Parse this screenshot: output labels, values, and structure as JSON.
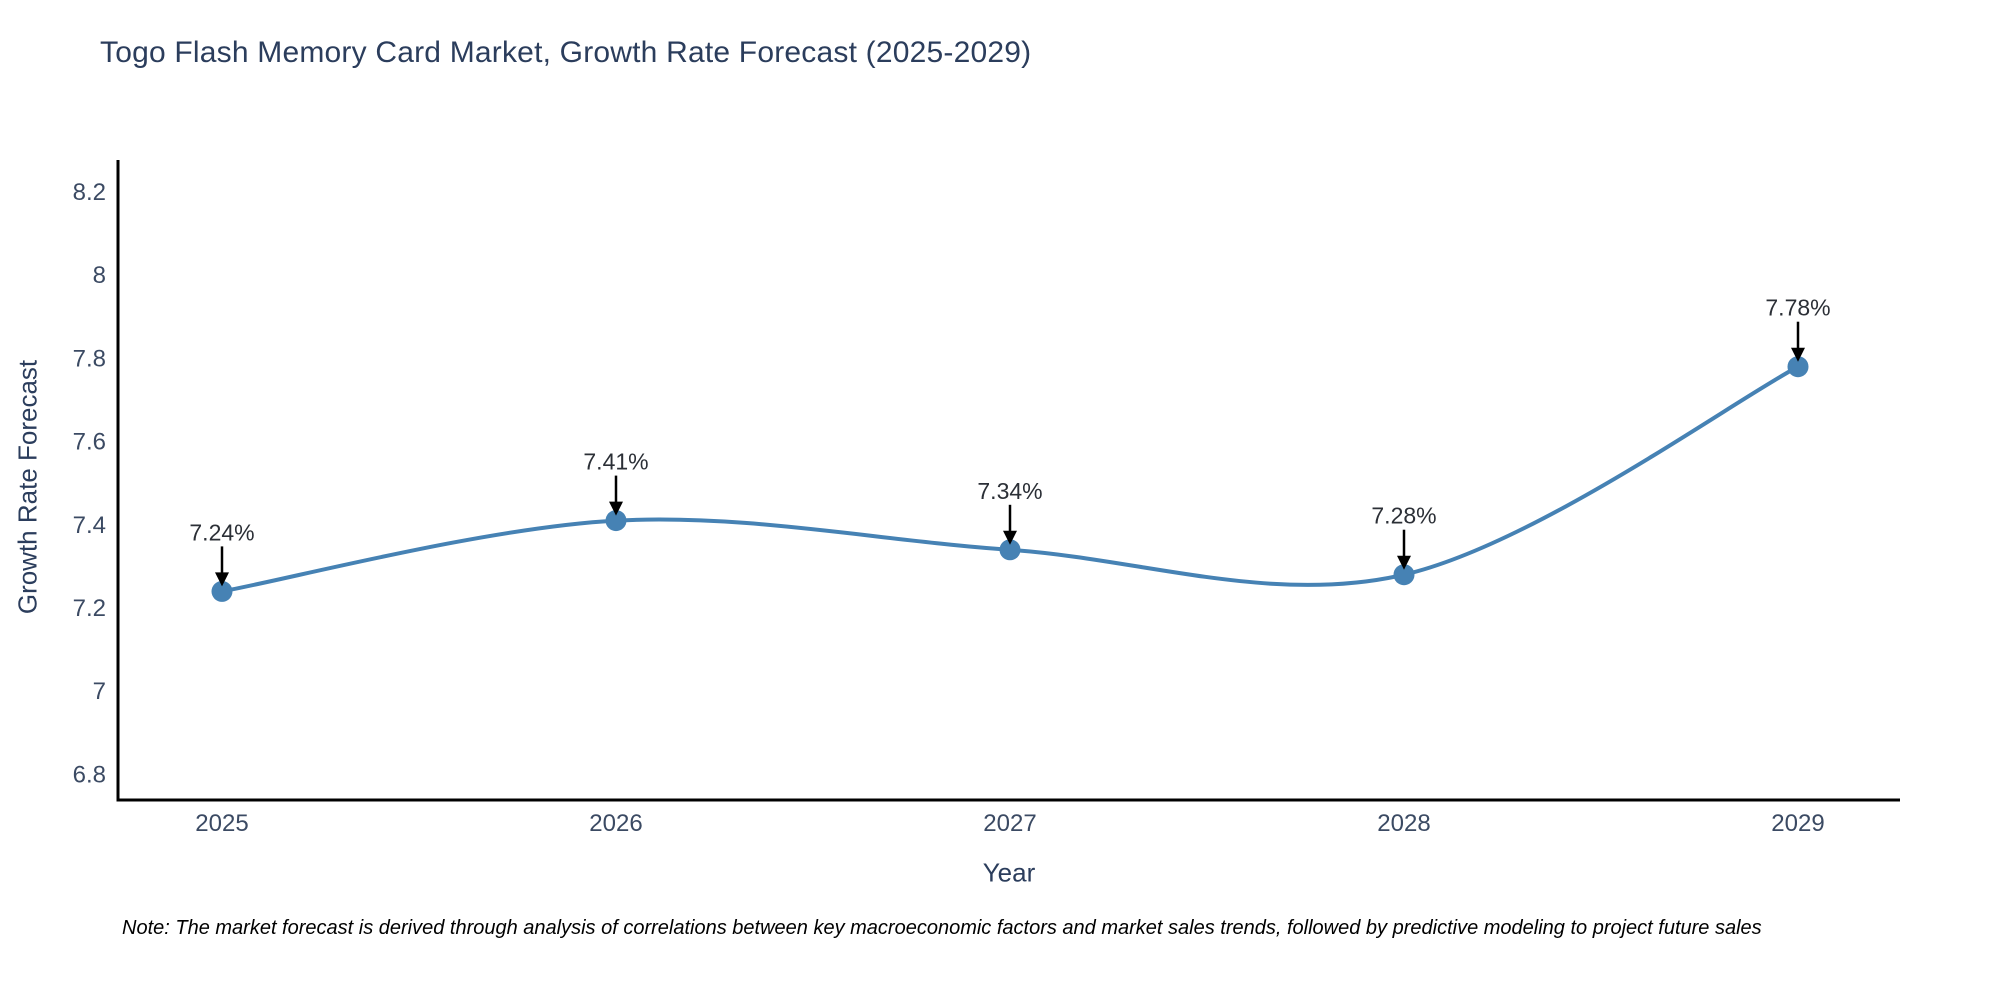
{
  "page": {
    "footnote": "Note: The market forecast is derived through analysis of correlations between key macroeconomic factors and market sales trends, followed by predictive modeling to project future sales"
  },
  "chart_data": {
    "type": "line",
    "title": "Togo Flash Memory Card Market, Growth Rate Forecast (2025-2029)",
    "xlabel": "Year",
    "ylabel": "Growth Rate Forecast",
    "x": [
      2025,
      2026,
      2027,
      2028,
      2029
    ],
    "series": [
      {
        "name": "Growth Rate Forecast",
        "values": [
          7.24,
          7.41,
          7.34,
          7.28,
          7.78
        ],
        "labels": [
          "7.24%",
          "7.41%",
          "7.34%",
          "7.28%",
          "7.78%"
        ]
      }
    ],
    "yticks": [
      "6.8",
      "7",
      "7.2",
      "7.4",
      "7.6",
      "7.8",
      "8",
      "8.2"
    ],
    "ytick_values": [
      6.8,
      7.0,
      7.2,
      7.4,
      7.6,
      7.8,
      8.0,
      8.2
    ],
    "ylim": [
      6.74,
      8.29
    ],
    "line_shape": "spline",
    "grid": false,
    "legend_position": "none",
    "annotations_have_arrows": true,
    "colors": {
      "line": "#4682b4",
      "marker": "#4682b4",
      "annotation_text": "#2b2f36",
      "arrow": "#000000",
      "axis": "#000000",
      "title_text": "#2b3d5c",
      "tick_text": "#3b4a63",
      "note_text": "#000000"
    }
  }
}
